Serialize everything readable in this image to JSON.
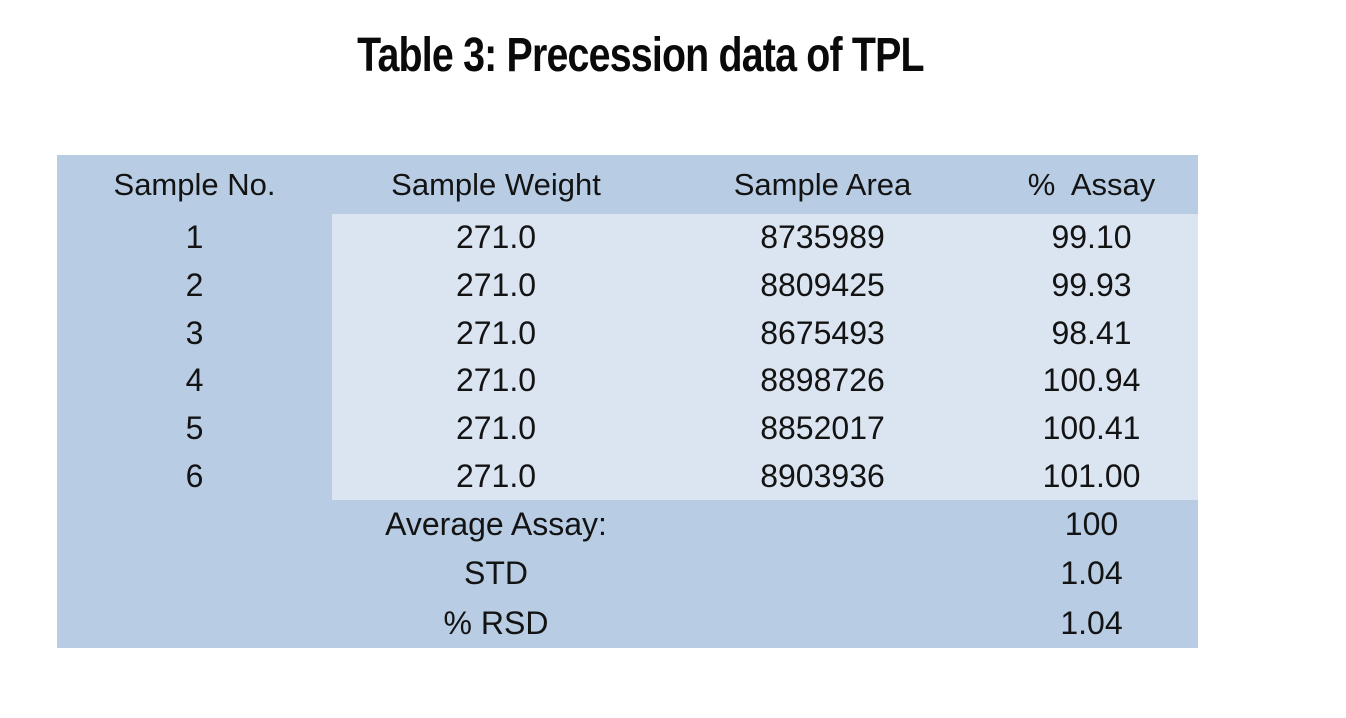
{
  "title": "Table 3: Precession data of TPL",
  "colors": {
    "header_frame_bg": "#b8cce4",
    "data_region_bg": "#dbe5f1",
    "text": "#131313",
    "page_bg": "#ffffff"
  },
  "table": {
    "columns": [
      "Sample No.",
      "Sample Weight",
      "Sample Area",
      "%  Assay"
    ],
    "rows": [
      {
        "no": "1",
        "weight": "271.0",
        "area": "8735989",
        "assay": "99.10"
      },
      {
        "no": "2",
        "weight": "271.0",
        "area": "8809425",
        "assay": "99.93"
      },
      {
        "no": "3",
        "weight": "271.0",
        "area": "8675493",
        "assay": "98.41"
      },
      {
        "no": "4",
        "weight": "271.0",
        "area": "8898726",
        "assay": "100.94"
      },
      {
        "no": "5",
        "weight": "271.0",
        "area": "8852017",
        "assay": "100.41"
      },
      {
        "no": "6",
        "weight": "271.0",
        "area": "8903936",
        "assay": "101.00"
      }
    ],
    "summary": [
      {
        "label": "Average Assay:",
        "value": "100"
      },
      {
        "label": "STD",
        "value": "1.04"
      },
      {
        "label": "% RSD",
        "value": "1.04"
      }
    ]
  }
}
